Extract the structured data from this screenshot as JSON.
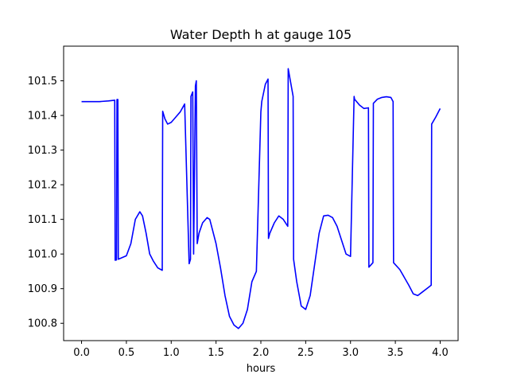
{
  "chart_data": {
    "type": "line",
    "title": "Water Depth h at gauge 105",
    "xlabel": "hours",
    "ylabel": "",
    "xlim": [
      -0.2,
      4.2
    ],
    "ylim": [
      100.75,
      101.6
    ],
    "xticks": [
      0.0,
      0.5,
      1.0,
      1.5,
      2.0,
      2.5,
      3.0,
      3.5,
      4.0
    ],
    "xtick_labels": [
      "0.0",
      "0.5",
      "1.0",
      "1.5",
      "2.0",
      "2.5",
      "3.0",
      "3.5",
      "4.0"
    ],
    "yticks": [
      100.8,
      100.9,
      101.0,
      101.1,
      101.2,
      101.3,
      101.4,
      101.5
    ],
    "ytick_labels": [
      "100.8",
      "100.9",
      "101.0",
      "101.1",
      "101.2",
      "101.3",
      "101.4",
      "101.5"
    ],
    "grid": false,
    "series": [
      {
        "color": "#0000ff",
        "x": [
          0.0,
          0.1,
          0.2,
          0.3,
          0.37,
          0.375,
          0.39,
          0.395,
          0.405,
          0.41,
          0.5,
          0.55,
          0.6,
          0.65,
          0.68,
          0.72,
          0.76,
          0.8,
          0.85,
          0.9,
          0.905,
          0.93,
          0.96,
          1.0,
          1.05,
          1.1,
          1.15,
          1.2,
          1.215,
          1.22,
          1.24,
          1.25,
          1.27,
          1.28,
          1.29,
          1.3,
          1.31,
          1.35,
          1.4,
          1.43,
          1.46,
          1.5,
          1.55,
          1.6,
          1.65,
          1.7,
          1.75,
          1.8,
          1.85,
          1.9,
          1.95,
          2.0,
          2.01,
          2.05,
          2.08,
          2.085,
          2.1,
          2.15,
          2.2,
          2.25,
          2.3,
          2.305,
          2.36,
          2.365,
          2.4,
          2.45,
          2.5,
          2.55,
          2.6,
          2.65,
          2.7,
          2.75,
          2.8,
          2.85,
          2.9,
          2.95,
          3.0,
          3.04,
          3.045,
          3.1,
          3.15,
          3.2,
          3.205,
          3.25,
          3.255,
          3.3,
          3.35,
          3.4,
          3.45,
          3.475,
          3.48,
          3.55,
          3.65,
          3.7,
          3.75,
          3.8,
          3.85,
          3.9,
          3.905,
          3.95,
          4.0
        ],
        "y": [
          101.44,
          101.44,
          101.44,
          101.442,
          101.444,
          100.982,
          100.983,
          101.446,
          101.446,
          100.985,
          100.995,
          101.03,
          101.1,
          101.122,
          101.11,
          101.06,
          101.0,
          100.98,
          100.96,
          100.953,
          101.412,
          101.39,
          101.375,
          101.38,
          101.395,
          101.41,
          101.433,
          100.972,
          100.985,
          101.455,
          101.468,
          101.0,
          101.485,
          101.5,
          101.03,
          101.045,
          101.06,
          101.09,
          101.105,
          101.1,
          101.07,
          101.03,
          100.96,
          100.88,
          100.82,
          100.795,
          100.785,
          100.8,
          100.84,
          100.92,
          100.95,
          101.41,
          101.44,
          101.49,
          101.505,
          101.045,
          101.06,
          101.09,
          101.11,
          101.1,
          101.08,
          101.535,
          101.455,
          100.985,
          100.92,
          100.85,
          100.84,
          100.88,
          100.97,
          101.06,
          101.11,
          101.112,
          101.105,
          101.08,
          101.04,
          101.0,
          100.993,
          101.455,
          101.447,
          101.43,
          101.42,
          101.422,
          100.962,
          100.975,
          101.435,
          101.447,
          101.452,
          101.454,
          101.452,
          101.44,
          100.975,
          100.955,
          100.91,
          100.885,
          100.88,
          100.89,
          100.9,
          100.91,
          101.375,
          101.395,
          101.42
        ]
      }
    ]
  }
}
